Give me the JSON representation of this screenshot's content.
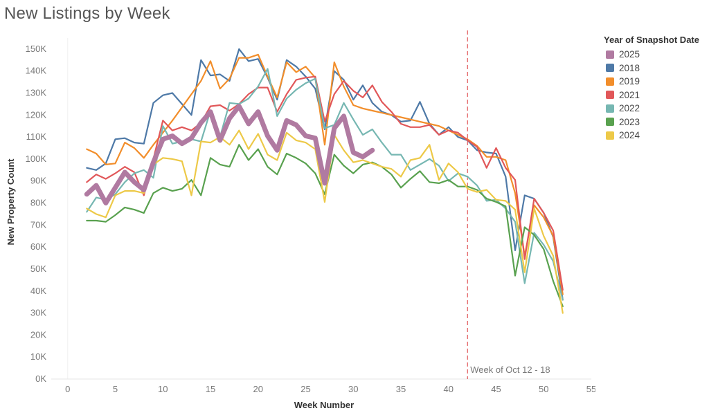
{
  "title": "New Listings by Week",
  "legend": {
    "title": "Year of Snapshot Date",
    "items": [
      {
        "label": "2025",
        "color": "#b07aa1"
      },
      {
        "label": "2018",
        "color": "#4e79a7"
      },
      {
        "label": "2019",
        "color": "#f28e2b"
      },
      {
        "label": "2021",
        "color": "#e15759"
      },
      {
        "label": "2022",
        "color": "#76b7b2"
      },
      {
        "label": "2023",
        "color": "#59a14f"
      },
      {
        "label": "2024",
        "color": "#edc948"
      }
    ]
  },
  "chart_data": {
    "type": "line",
    "title": "New Listings by Week",
    "xlabel": "Week Number",
    "ylabel": "New Property Count",
    "xlim": [
      -1,
      55
    ],
    "ylim": [
      0,
      155000
    ],
    "x_ticks": [
      0,
      5,
      10,
      15,
      20,
      25,
      30,
      35,
      40,
      45,
      50,
      55
    ],
    "y_ticks": [
      0,
      10000,
      20000,
      30000,
      40000,
      50000,
      60000,
      70000,
      80000,
      90000,
      100000,
      110000,
      120000,
      130000,
      140000,
      150000
    ],
    "y_tick_labels": [
      "0K",
      "10K",
      "20K",
      "30K",
      "40K",
      "50K",
      "60K",
      "70K",
      "80K",
      "90K",
      "100K",
      "110K",
      "120K",
      "130K",
      "140K",
      "150K"
    ],
    "grid": false,
    "legend_position": "right",
    "reference_line": {
      "x": 42,
      "label": "Week of Oct 12 - 18",
      "color": "#e15759"
    },
    "series": [
      {
        "name": "2018",
        "color": "#4e79a7",
        "x": [
          2,
          3,
          4,
          5,
          6,
          7,
          8,
          9,
          10,
          11,
          12,
          13,
          14,
          15,
          16,
          17,
          18,
          19,
          20,
          21,
          22,
          23,
          24,
          25,
          26,
          27,
          28,
          29,
          30,
          31,
          32,
          33,
          34,
          35,
          36,
          37,
          38,
          39,
          40,
          41,
          42,
          43,
          44,
          45,
          46,
          47,
          48,
          49,
          50,
          51,
          52
        ],
        "values": [
          96000,
          95000,
          98000,
          109000,
          109500,
          107500,
          107000,
          125500,
          129000,
          130000,
          125000,
          120000,
          145000,
          138000,
          138500,
          135500,
          150000,
          144500,
          145500,
          137000,
          127000,
          145000,
          142000,
          137500,
          132000,
          113500,
          140000,
          136000,
          127000,
          133500,
          125500,
          121500,
          120000,
          117000,
          117500,
          126000,
          116000,
          111000,
          114500,
          110000,
          108500,
          104000,
          103000,
          102500,
          92000,
          58500,
          83500,
          82000,
          75500,
          64500,
          36000
        ]
      },
      {
        "name": "2019",
        "color": "#f28e2b",
        "x": [
          2,
          3,
          4,
          5,
          6,
          7,
          8,
          9,
          10,
          11,
          12,
          13,
          14,
          15,
          16,
          17,
          18,
          19,
          20,
          21,
          22,
          23,
          24,
          25,
          26,
          27,
          28,
          29,
          30,
          31,
          32,
          33,
          34,
          35,
          36,
          37,
          38,
          39,
          40,
          41,
          42,
          43,
          44,
          45,
          46,
          47,
          48,
          49,
          50,
          51,
          52
        ],
        "values": [
          104500,
          102500,
          97500,
          98000,
          107500,
          105000,
          100500,
          106500,
          112000,
          117500,
          123500,
          129500,
          135500,
          144500,
          132000,
          136500,
          146000,
          146000,
          147500,
          137500,
          128000,
          144000,
          139500,
          142000,
          137000,
          106500,
          144000,
          133000,
          124500,
          123000,
          122000,
          121000,
          120000,
          119000,
          118000,
          117000,
          116000,
          115000,
          113000,
          111000,
          109000,
          106000,
          101000,
          101000,
          99500,
          84500,
          56000,
          79000,
          73500,
          65000,
          38500
        ]
      },
      {
        "name": "2021",
        "color": "#e15759",
        "x": [
          2,
          3,
          4,
          5,
          6,
          7,
          8,
          9,
          10,
          11,
          12,
          13,
          14,
          15,
          16,
          17,
          18,
          19,
          20,
          21,
          22,
          23,
          24,
          25,
          26,
          27,
          28,
          29,
          30,
          31,
          32,
          33,
          34,
          35,
          36,
          37,
          38,
          39,
          40,
          41,
          42,
          43,
          44,
          45,
          46,
          47,
          48,
          49,
          50,
          51,
          52
        ],
        "values": [
          89500,
          93000,
          91000,
          93500,
          96500,
          94000,
          83500,
          100000,
          117500,
          113000,
          114500,
          113000,
          116500,
          124000,
          124500,
          122000,
          125000,
          129500,
          132500,
          132500,
          121500,
          129500,
          136000,
          137000,
          137500,
          117000,
          129500,
          135500,
          131000,
          128000,
          133500,
          126000,
          121500,
          116000,
          114500,
          114500,
          115500,
          111000,
          113000,
          112000,
          108500,
          105500,
          96000,
          105000,
          96000,
          90500,
          54500,
          82000,
          75500,
          67500,
          40500
        ]
      },
      {
        "name": "2022",
        "color": "#76b7b2",
        "x": [
          2,
          3,
          4,
          5,
          6,
          7,
          8,
          9,
          10,
          11,
          12,
          13,
          14,
          15,
          16,
          17,
          18,
          19,
          20,
          21,
          22,
          23,
          24,
          25,
          26,
          27,
          28,
          29,
          30,
          31,
          32,
          33,
          34,
          35,
          36,
          37,
          38,
          39,
          40,
          41,
          42,
          43,
          44,
          45,
          46,
          47,
          48,
          49,
          50,
          51,
          52
        ],
        "values": [
          76000,
          82500,
          81500,
          84000,
          89500,
          93500,
          95000,
          91500,
          115000,
          107000,
          108000,
          109000,
          108000,
          122000,
          110000,
          125500,
          125000,
          127500,
          133000,
          141000,
          119500,
          127500,
          131500,
          134500,
          136500,
          114000,
          115500,
          125500,
          118000,
          111000,
          113500,
          107500,
          102000,
          102000,
          95000,
          97500,
          100000,
          97000,
          90000,
          93500,
          92000,
          88000,
          81000,
          81500,
          77500,
          71500,
          43500,
          66500,
          61000,
          53500,
          36000
        ]
      },
      {
        "name": "2023",
        "color": "#59a14f",
        "x": [
          2,
          3,
          4,
          5,
          6,
          7,
          8,
          9,
          10,
          11,
          12,
          13,
          14,
          15,
          16,
          17,
          18,
          19,
          20,
          21,
          22,
          23,
          24,
          25,
          26,
          27,
          28,
          29,
          30,
          31,
          32,
          33,
          34,
          35,
          36,
          37,
          38,
          39,
          40,
          41,
          42,
          43,
          44,
          45,
          46,
          47,
          48,
          49,
          50,
          51,
          52
        ],
        "values": [
          72000,
          72000,
          71500,
          74500,
          78000,
          77000,
          75500,
          84500,
          87000,
          85500,
          86500,
          90500,
          83500,
          100500,
          97500,
          96500,
          106500,
          99500,
          104500,
          96500,
          93000,
          102500,
          100500,
          98000,
          93500,
          84000,
          102000,
          97000,
          93500,
          97500,
          98500,
          96500,
          93000,
          87000,
          91000,
          94500,
          89500,
          89000,
          90500,
          87500,
          87500,
          86000,
          82000,
          80500,
          78500,
          47000,
          69000,
          65500,
          59000,
          44500,
          33000
        ]
      },
      {
        "name": "2024",
        "color": "#edc948",
        "x": [
          2,
          3,
          4,
          5,
          6,
          7,
          8,
          9,
          10,
          11,
          12,
          13,
          14,
          15,
          16,
          17,
          18,
          19,
          20,
          21,
          22,
          23,
          24,
          25,
          26,
          27,
          28,
          29,
          30,
          31,
          32,
          33,
          34,
          35,
          36,
          37,
          38,
          39,
          40,
          41,
          42,
          43,
          44,
          45,
          46,
          47,
          48,
          49,
          50,
          51,
          52
        ],
        "values": [
          77500,
          75000,
          73500,
          83500,
          85500,
          85500,
          84500,
          97500,
          100500,
          100000,
          99000,
          83500,
          108000,
          107500,
          110000,
          106500,
          113000,
          104500,
          111500,
          102000,
          99500,
          112000,
          108500,
          107500,
          104500,
          80500,
          111000,
          104000,
          98500,
          99500,
          98000,
          96500,
          95500,
          92000,
          99500,
          100500,
          106500,
          90500,
          98000,
          94000,
          86500,
          85000,
          86000,
          81500,
          81000,
          77000,
          48500,
          77500,
          65000,
          56000,
          30000
        ]
      },
      {
        "name": "2025",
        "color": "#b07aa1",
        "x": [
          2,
          3,
          4,
          5,
          6,
          7,
          8,
          9,
          10,
          11,
          12,
          13,
          14,
          15,
          16,
          17,
          18,
          19,
          20,
          21,
          22,
          23,
          24,
          25,
          26,
          27,
          28,
          29,
          30,
          31,
          32
        ],
        "values": [
          84000,
          88000,
          80000,
          87000,
          94000,
          89500,
          86000,
          98500,
          109000,
          110500,
          107000,
          109500,
          116500,
          121500,
          108500,
          118500,
          124000,
          116000,
          121500,
          110500,
          104000,
          117500,
          115500,
          110500,
          109500,
          89000,
          114000,
          119500,
          103000,
          101000,
          104000
        ]
      }
    ]
  }
}
